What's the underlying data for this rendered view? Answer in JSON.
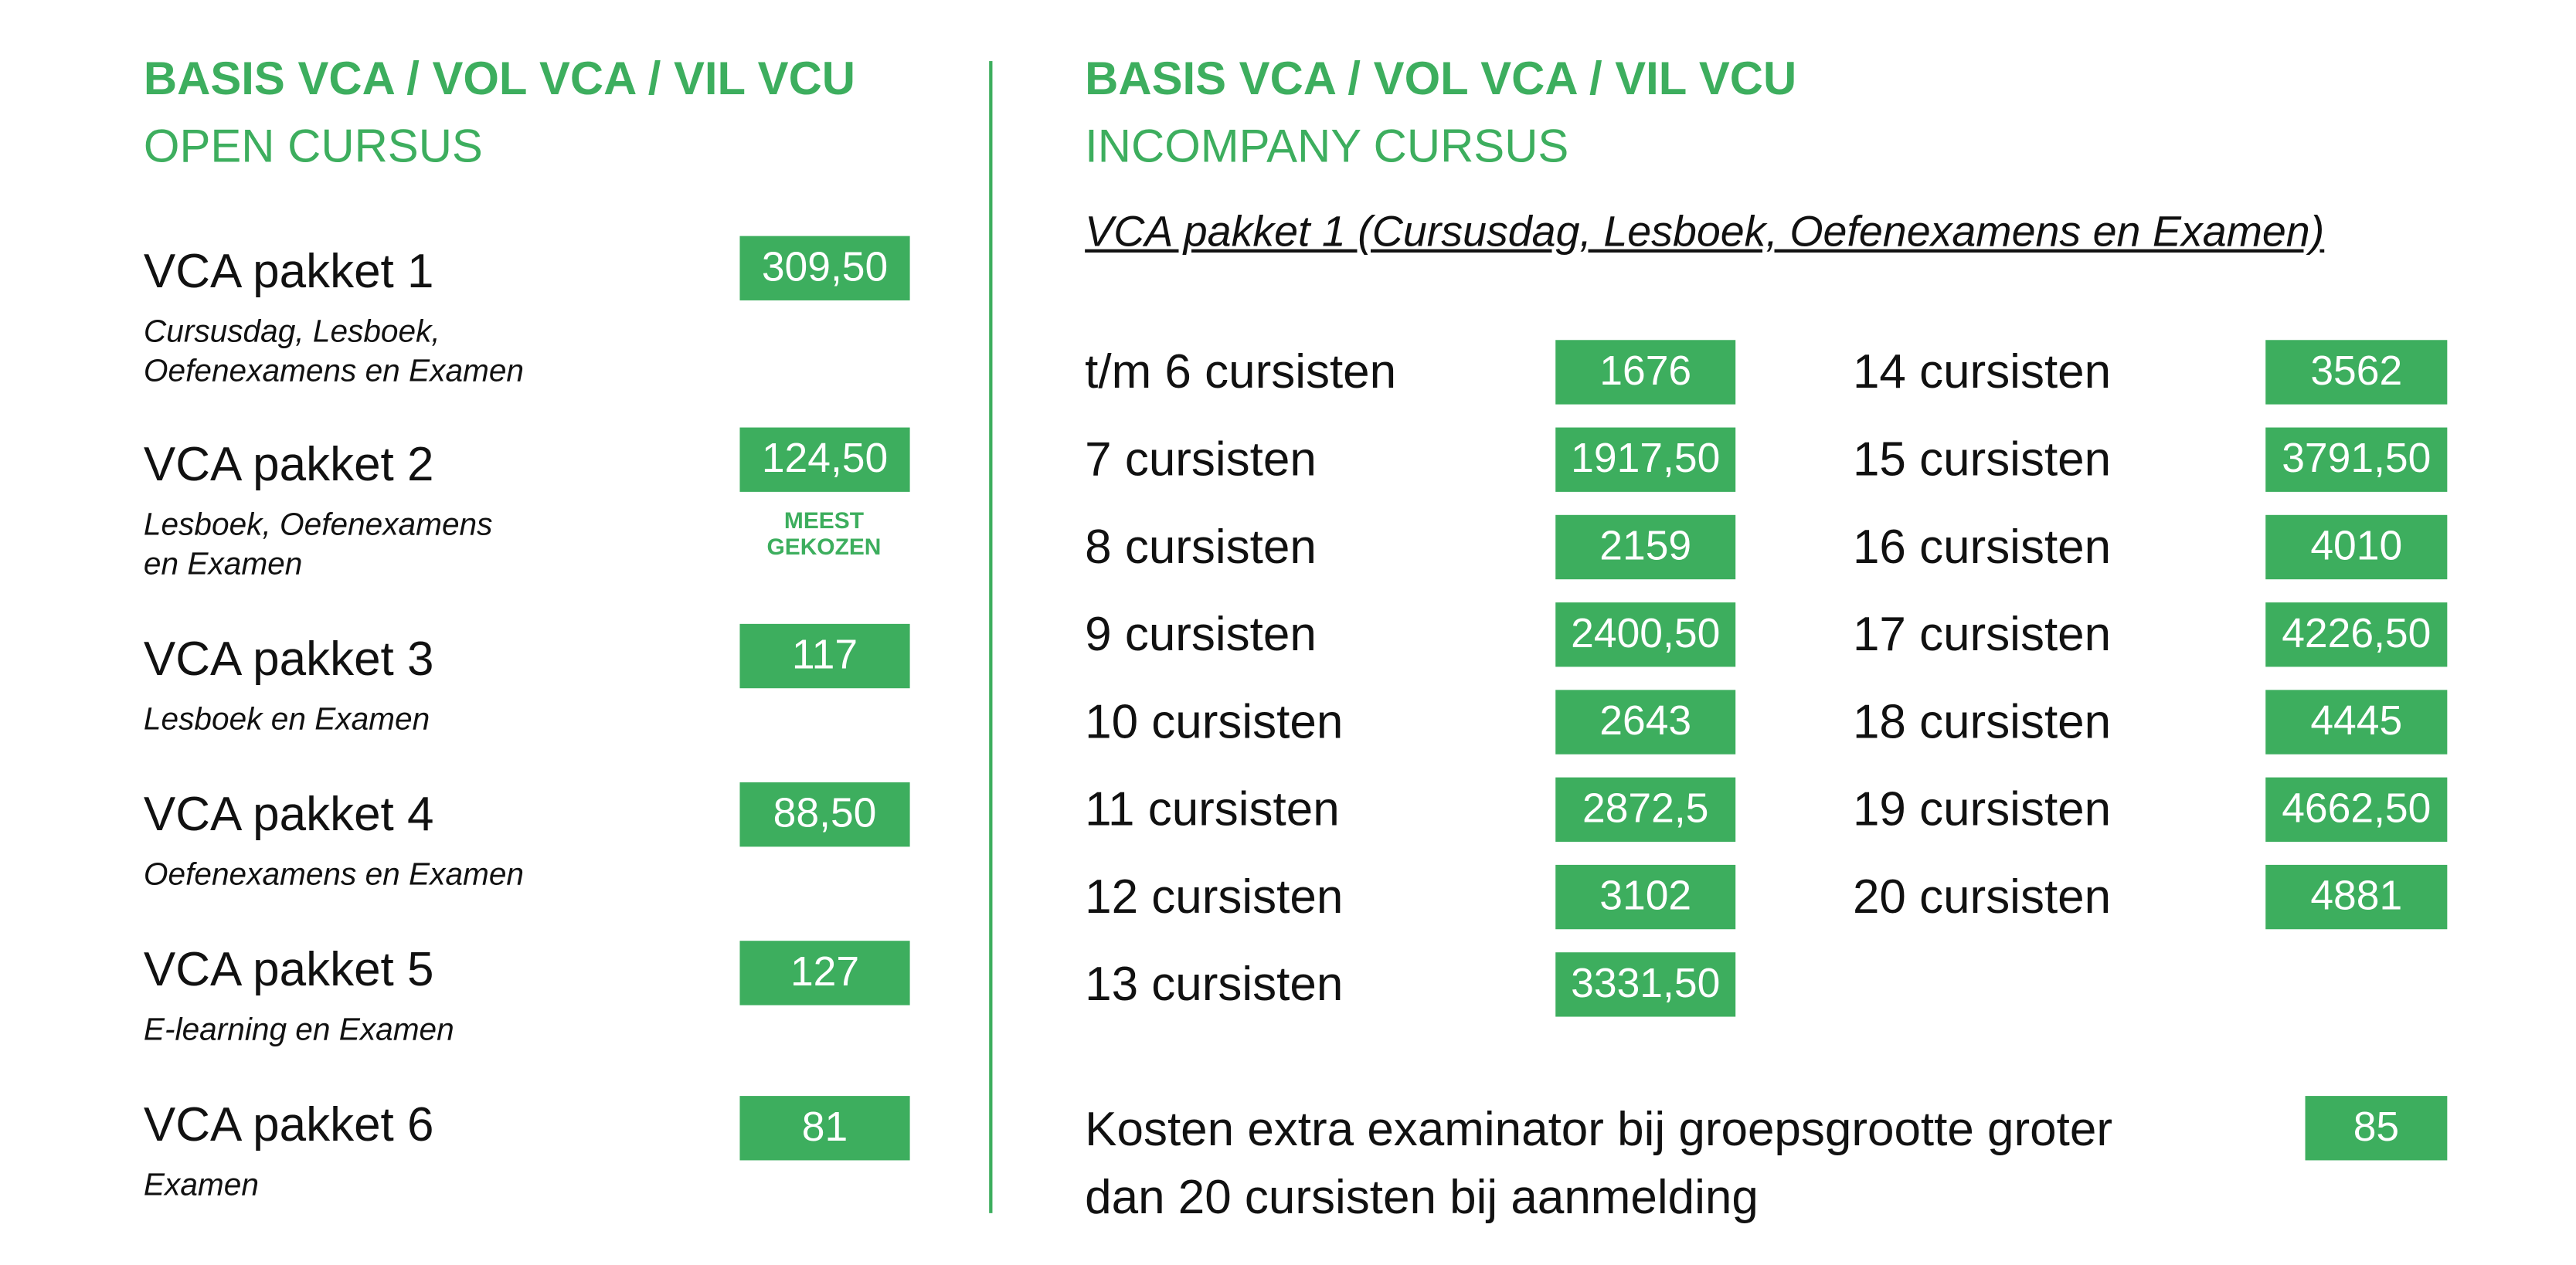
{
  "left": {
    "title": "BASIS VCA / VOL VCA / VIL VCU",
    "subtitle": "OPEN CURSUS",
    "packages": [
      {
        "name": "VCA pakket 1",
        "desc": [
          "Cursusdag, Lesboek,",
          "Oefenexamens en Examen"
        ],
        "price": "309,50"
      },
      {
        "name": "VCA pakket 2",
        "desc": [
          "Lesboek, Oefenexamens",
          "en Examen"
        ],
        "price": "124,50",
        "badge": [
          "MEEST",
          "GEKOZEN"
        ]
      },
      {
        "name": "VCA pakket 3",
        "desc": [
          "Lesboek en Examen"
        ],
        "price": "117"
      },
      {
        "name": "VCA pakket 4",
        "desc": [
          "Oefenexamens en Examen"
        ],
        "price": "88,50"
      },
      {
        "name": "VCA pakket 5",
        "desc": [
          "E-learning en Examen"
        ],
        "price": "127"
      },
      {
        "name": "VCA pakket 6",
        "desc": [
          "Examen"
        ],
        "price": "81"
      }
    ]
  },
  "right": {
    "title": "BASIS VCA / VOL VCA / VIL VCU",
    "subtitle": "INCOMPANY CURSUS",
    "heading": "VCA pakket 1 (Cursusdag, Lesboek, Oefenexamens en Examen)",
    "columns": [
      [
        {
          "label": "t/m 6 cursisten",
          "price": "1676"
        },
        {
          "label": "7 cursisten",
          "price": "1917,50"
        },
        {
          "label": "8 cursisten",
          "price": "2159"
        },
        {
          "label": "9 cursisten",
          "price": "2400,50"
        },
        {
          "label": "10 cursisten",
          "price": "2643"
        },
        {
          "label": "11 cursisten",
          "price": "2872,5"
        },
        {
          "label": "12 cursisten",
          "price": "3102"
        },
        {
          "label": "13 cursisten",
          "price": "3331,50"
        }
      ],
      [
        {
          "label": "14 cursisten",
          "price": "3562"
        },
        {
          "label": "15 cursisten",
          "price": "3791,50"
        },
        {
          "label": "16 cursisten",
          "price": "4010"
        },
        {
          "label": "17 cursisten",
          "price": "4226,50"
        },
        {
          "label": "18 cursisten",
          "price": "4445"
        },
        {
          "label": "19 cursisten",
          "price": "4662,50"
        },
        {
          "label": "20 cursisten",
          "price": "4881"
        }
      ]
    ],
    "extra": {
      "text": [
        "Kosten extra examinator bij groepsgrootte groter",
        "dan 20 cursisten bij aanmelding"
      ],
      "price": "85"
    }
  }
}
